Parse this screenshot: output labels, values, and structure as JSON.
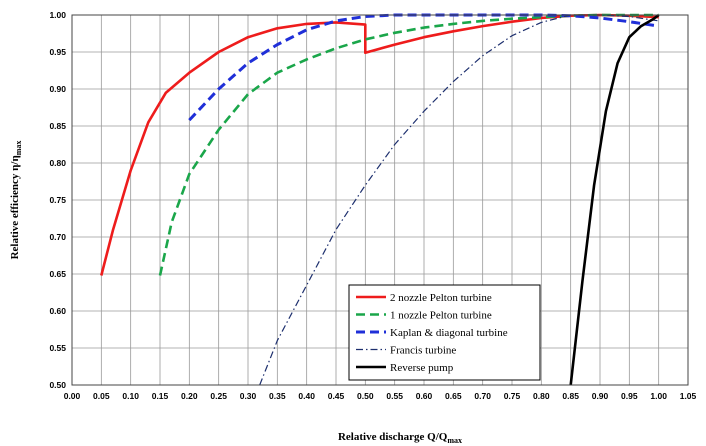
{
  "chart_data": {
    "type": "line",
    "title": "",
    "xlabel": {
      "main": "Relative discharge Q/Q",
      "sub": "max"
    },
    "ylabel": {
      "main": "Relative efficiency η/η",
      "sub": "max"
    },
    "xlim": [
      0,
      1.05
    ],
    "ylim": [
      0.5,
      1.0
    ],
    "x_ticks": [
      "0.00",
      "0.05",
      "0.10",
      "0.15",
      "0.20",
      "0.25",
      "0.30",
      "0.35",
      "0.40",
      "0.45",
      "0.50",
      "0.55",
      "0.60",
      "0.65",
      "0.70",
      "0.75",
      "0.80",
      "0.85",
      "0.90",
      "0.95",
      "1.00",
      "1.05"
    ],
    "y_ticks": [
      "0.50",
      "0.55",
      "0.60",
      "0.65",
      "0.70",
      "0.75",
      "0.80",
      "0.85",
      "0.90",
      "0.95",
      "1.00"
    ],
    "grid": true,
    "legend_position": "lower-right",
    "series": [
      {
        "name": "2 nozzle Pelton turbine",
        "color": "#ee1c1c",
        "style": "solid",
        "x": [
          0.05,
          0.07,
          0.1,
          0.13,
          0.16,
          0.2,
          0.25,
          0.3,
          0.35,
          0.4,
          0.45,
          0.5,
          0.5,
          0.55,
          0.6,
          0.65,
          0.7,
          0.75,
          0.8,
          0.85,
          0.9,
          0.95,
          1.0
        ],
        "y": [
          0.648,
          0.71,
          0.79,
          0.855,
          0.895,
          0.922,
          0.95,
          0.97,
          0.982,
          0.988,
          0.99,
          0.987,
          0.949,
          0.96,
          0.97,
          0.978,
          0.985,
          0.991,
          0.996,
          0.999,
          1.0,
          0.999,
          0.997
        ]
      },
      {
        "name": "1 nozzle Pelton turbine",
        "color": "#1aa64a",
        "style": "dashed",
        "x": [
          0.15,
          0.17,
          0.2,
          0.25,
          0.3,
          0.35,
          0.4,
          0.45,
          0.5,
          0.55,
          0.6,
          0.65,
          0.7,
          0.75,
          0.8,
          0.85,
          0.9,
          0.95,
          1.0
        ],
        "y": [
          0.648,
          0.72,
          0.785,
          0.845,
          0.893,
          0.922,
          0.94,
          0.955,
          0.967,
          0.976,
          0.983,
          0.988,
          0.992,
          0.995,
          0.997,
          0.999,
          1.0,
          1.0,
          1.0
        ]
      },
      {
        "name": "Kaplan & diagonal turbine",
        "color": "#1f2fd8",
        "style": "dashed",
        "x": [
          0.2,
          0.25,
          0.3,
          0.35,
          0.4,
          0.45,
          0.5,
          0.55,
          0.6,
          0.65,
          0.7,
          0.75,
          0.8,
          0.85,
          0.9,
          0.95,
          1.0
        ],
        "y": [
          0.858,
          0.9,
          0.935,
          0.96,
          0.98,
          0.992,
          0.998,
          1.0,
          1.0,
          1.0,
          1.0,
          1.0,
          1.0,
          0.999,
          0.996,
          0.991,
          0.985
        ]
      },
      {
        "name": "Francis turbine",
        "color": "#1d2f6e",
        "style": "dashdot",
        "x": [
          0.32,
          0.35,
          0.4,
          0.45,
          0.5,
          0.55,
          0.6,
          0.65,
          0.7,
          0.75,
          0.8,
          0.85,
          0.9,
          0.95,
          1.0
        ],
        "y": [
          0.5,
          0.56,
          0.635,
          0.71,
          0.77,
          0.825,
          0.87,
          0.91,
          0.945,
          0.972,
          0.99,
          1.0,
          1.0,
          0.998,
          0.992
        ]
      },
      {
        "name": "Reverse pump",
        "color": "#000000",
        "style": "solid",
        "x": [
          0.85,
          0.87,
          0.89,
          0.91,
          0.93,
          0.95,
          0.97,
          0.99,
          1.0
        ],
        "y": [
          0.5,
          0.64,
          0.77,
          0.87,
          0.935,
          0.97,
          0.985,
          0.994,
          1.0
        ]
      }
    ]
  }
}
